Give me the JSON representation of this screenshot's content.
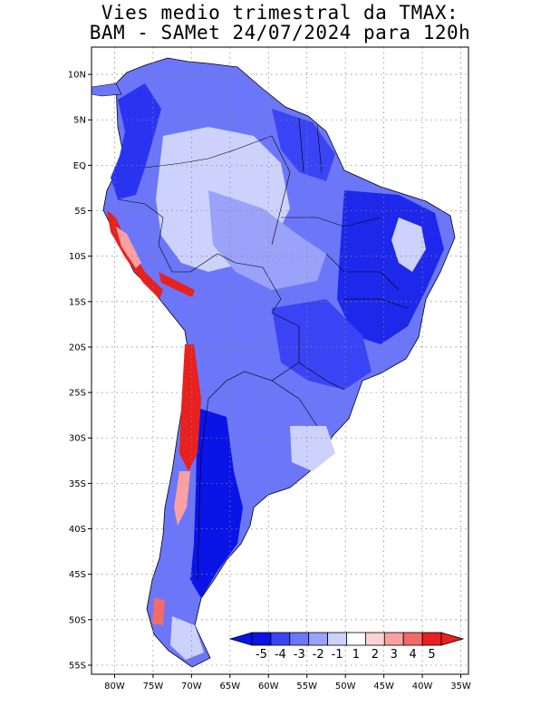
{
  "title_line1": "Vies medio trimestral da TMAX:",
  "title_line2": "BAM - SAMet 24/07/2024  para 120h",
  "lat_labels": [
    "10N",
    "5N",
    "EQ",
    "5S",
    "10S",
    "15S",
    "20S",
    "25S",
    "30S",
    "35S",
    "40S",
    "45S",
    "50S",
    "55S"
  ],
  "lat_values": [
    10,
    5,
    0,
    -5,
    -10,
    -15,
    -20,
    -25,
    -30,
    -35,
    -40,
    -45,
    -50,
    -55
  ],
  "lon_labels": [
    "80W",
    "75W",
    "70W",
    "65W",
    "60W",
    "55W",
    "50W",
    "45W",
    "40W",
    "35W"
  ],
  "lon_values": [
    -80,
    -75,
    -70,
    -65,
    -60,
    -55,
    -50,
    -45,
    -40,
    -35
  ],
  "map_extent": {
    "lon_min": -83,
    "lon_max": -34,
    "lat_min": -56,
    "lat_max": 13
  },
  "colorbar": {
    "labels": [
      "-5",
      "-4",
      "-3",
      "-2",
      "-1",
      "1",
      "2",
      "3",
      "4",
      "5"
    ],
    "colors": [
      "#0a14e6",
      "#3a44f4",
      "#6c76f8",
      "#9aa2fa",
      "#cdd2fc",
      "#ffffff",
      "#fcd2d2",
      "#f9a0a0",
      "#f46a6a",
      "#e8201e"
    ]
  }
}
